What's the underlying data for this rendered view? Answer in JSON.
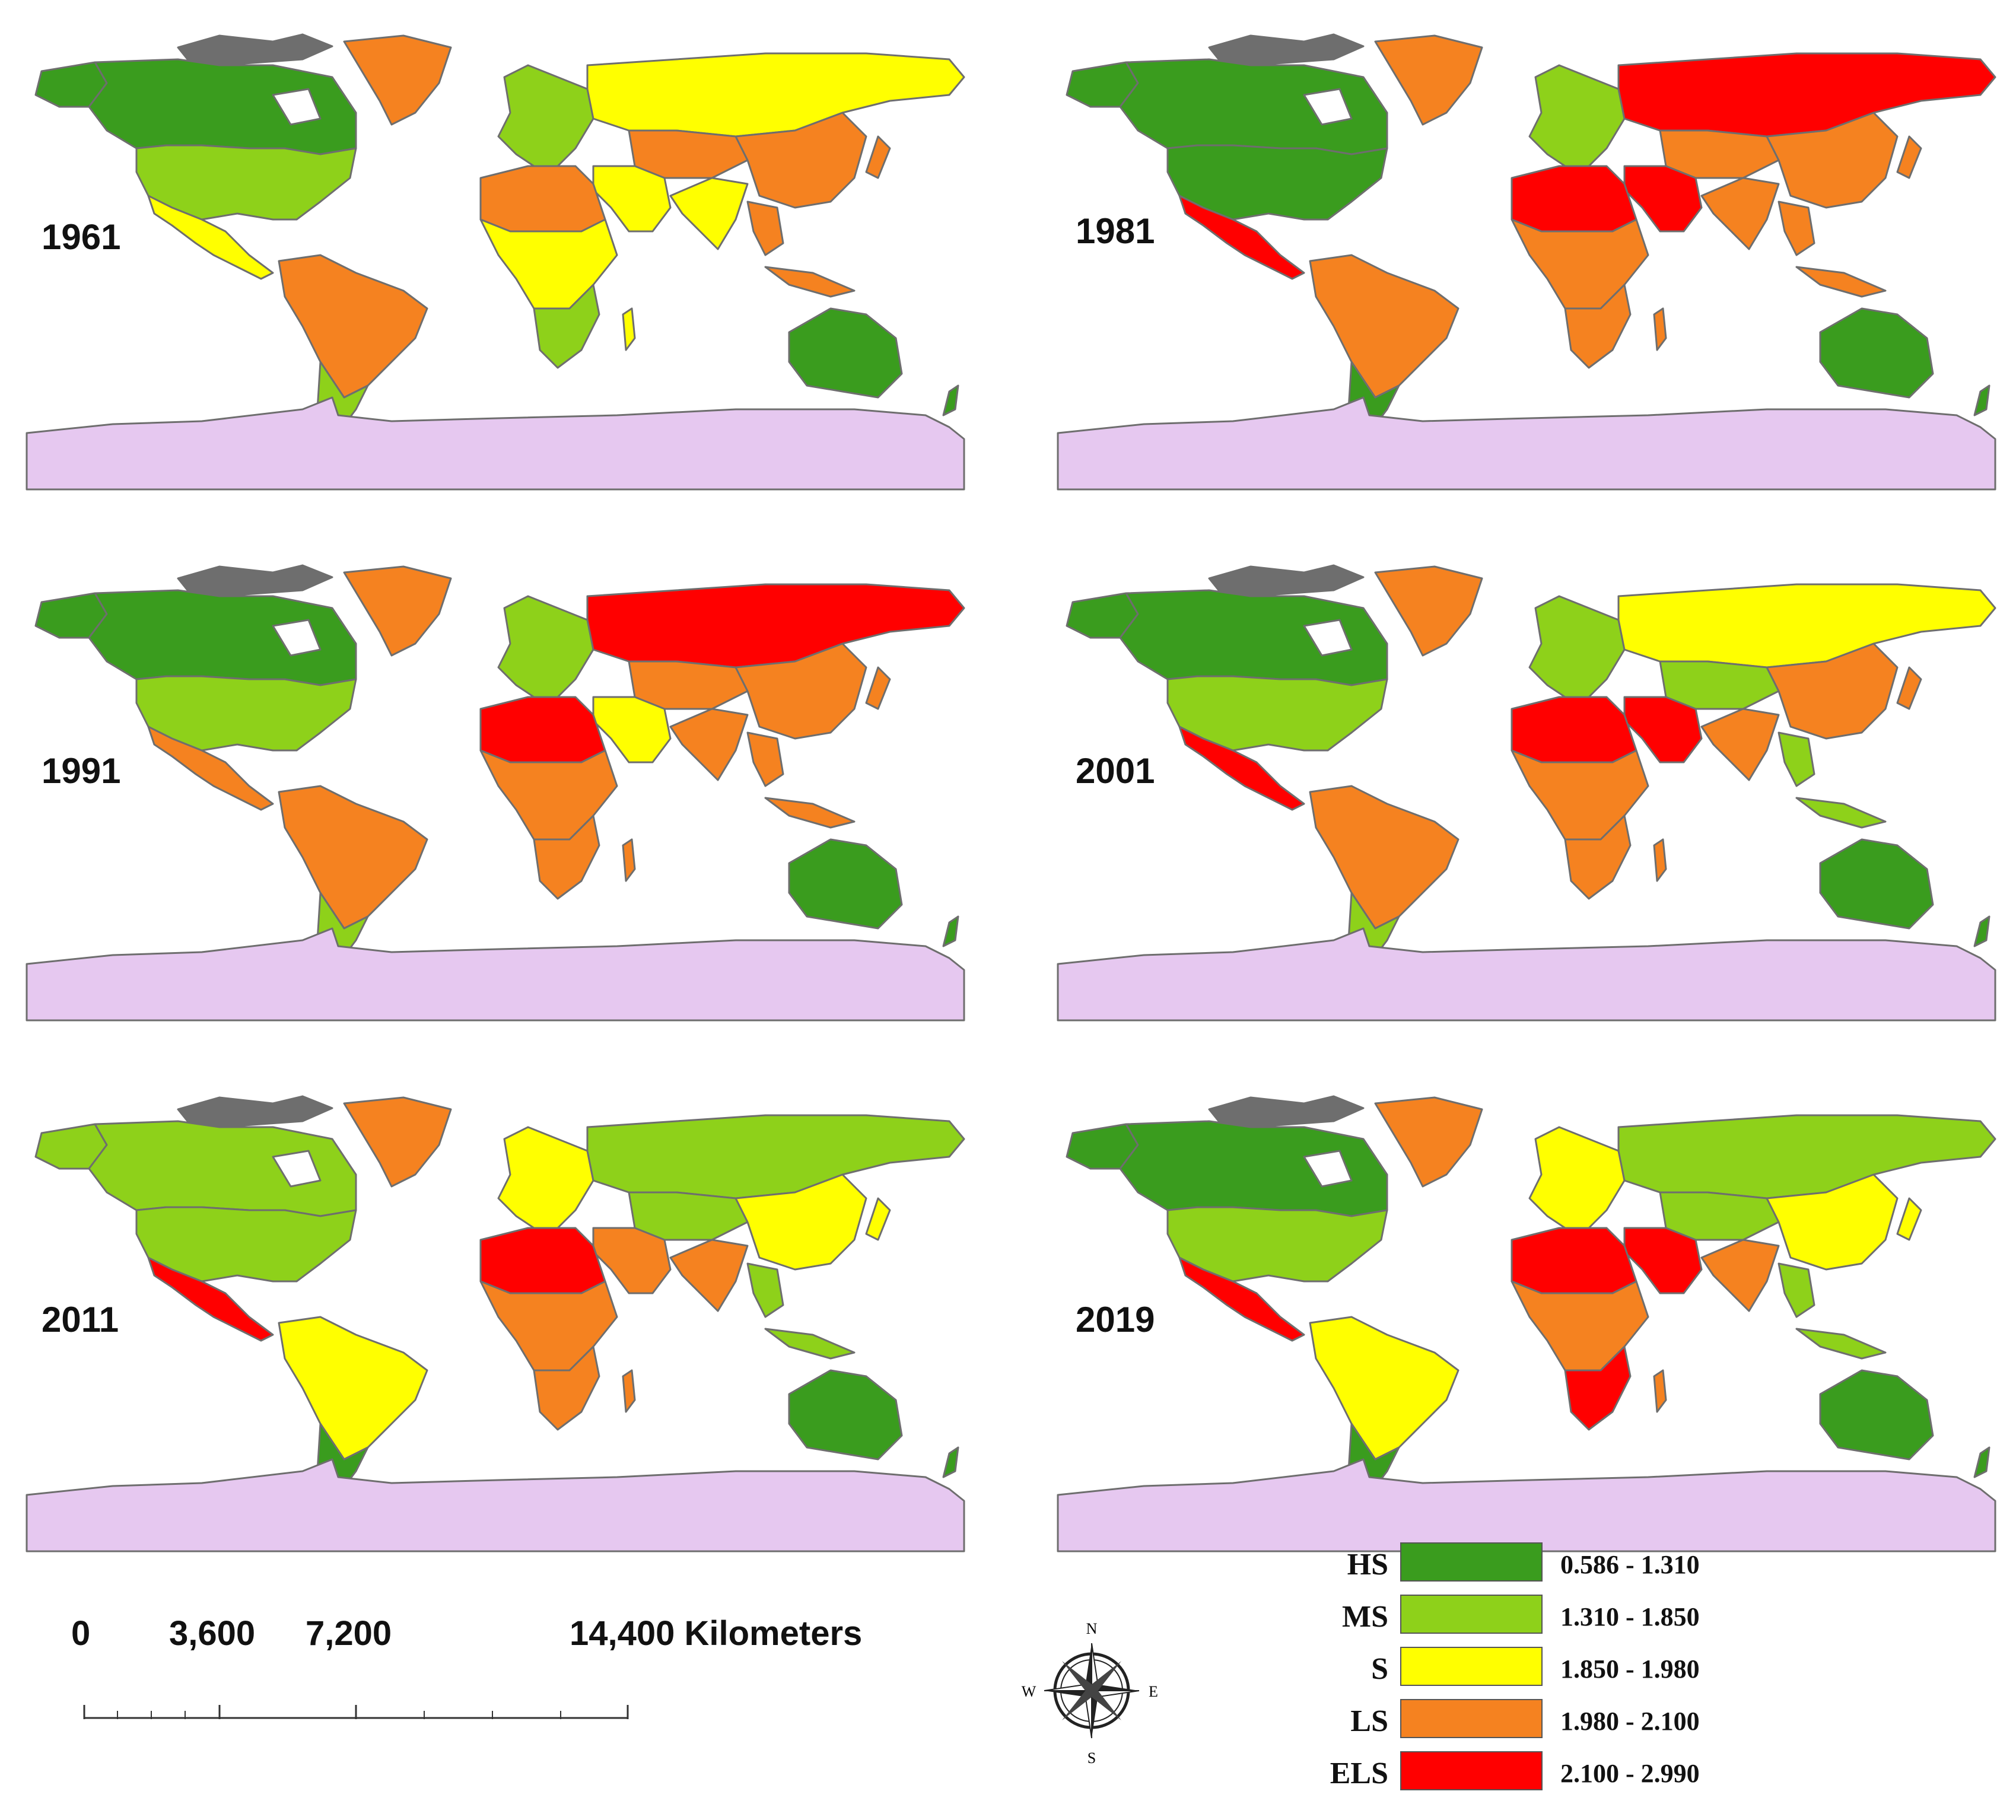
{
  "panels": [
    {
      "year": "1961",
      "colors": {
        "na": "#3a9c1e",
        "usa": "#8ed11a",
        "mex": "#ffff00",
        "sa": "#f58220",
        "sa_s": "#8ed11a",
        "eur": "#8ed11a",
        "rus": "#ffff00",
        "asia": "#f58220",
        "china": "#f58220",
        "mideast": "#ffff00",
        "nafr": "#f58220",
        "cafr": "#ffff00",
        "safr": "#8ed11a",
        "india": "#ffff00",
        "aus": "#3a9c1e",
        "grl": "#f58220"
      }
    },
    {
      "year": "1981",
      "colors": {
        "na": "#3a9c1e",
        "usa": "#3a9c1e",
        "mex": "#ff0000",
        "sa": "#f58220",
        "sa_s": "#3a9c1e",
        "eur": "#8ed11a",
        "rus": "#ff0000",
        "asia": "#f58220",
        "china": "#f58220",
        "mideast": "#ff0000",
        "nafr": "#ff0000",
        "cafr": "#f58220",
        "safr": "#f58220",
        "india": "#f58220",
        "aus": "#3a9c1e",
        "grl": "#f58220"
      }
    },
    {
      "year": "1991",
      "colors": {
        "na": "#3a9c1e",
        "usa": "#8ed11a",
        "mex": "#f58220",
        "sa": "#f58220",
        "sa_s": "#8ed11a",
        "eur": "#8ed11a",
        "rus": "#ff0000",
        "asia": "#f58220",
        "china": "#f58220",
        "mideast": "#ffff00",
        "nafr": "#ff0000",
        "cafr": "#f58220",
        "safr": "#f58220",
        "india": "#f58220",
        "aus": "#3a9c1e",
        "grl": "#f58220"
      }
    },
    {
      "year": "2001",
      "colors": {
        "na": "#3a9c1e",
        "usa": "#8ed11a",
        "mex": "#ff0000",
        "sa": "#f58220",
        "sa_s": "#8ed11a",
        "eur": "#8ed11a",
        "rus": "#ffff00",
        "asia": "#8ed11a",
        "china": "#f58220",
        "mideast": "#ff0000",
        "nafr": "#ff0000",
        "cafr": "#f58220",
        "safr": "#f58220",
        "india": "#f58220",
        "aus": "#3a9c1e",
        "grl": "#f58220"
      }
    },
    {
      "year": "2011",
      "colors": {
        "na": "#8ed11a",
        "usa": "#8ed11a",
        "mex": "#ff0000",
        "sa": "#ffff00",
        "sa_s": "#3a9c1e",
        "eur": "#ffff00",
        "rus": "#8ed11a",
        "asia": "#8ed11a",
        "china": "#ffff00",
        "mideast": "#f58220",
        "nafr": "#ff0000",
        "cafr": "#f58220",
        "safr": "#f58220",
        "india": "#f58220",
        "aus": "#3a9c1e",
        "grl": "#f58220"
      }
    },
    {
      "year": "2019",
      "colors": {
        "na": "#3a9c1e",
        "usa": "#8ed11a",
        "mex": "#ff0000",
        "sa": "#ffff00",
        "sa_s": "#3a9c1e",
        "eur": "#ffff00",
        "rus": "#8ed11a",
        "asia": "#8ed11a",
        "china": "#ffff00",
        "mideast": "#ff0000",
        "nafr": "#ff0000",
        "cafr": "#f58220",
        "safr": "#ff0000",
        "india": "#f58220",
        "aus": "#3a9c1e",
        "grl": "#f58220"
      }
    }
  ],
  "antarctica_color": "#e6c8f0",
  "border_color": "#6e6e6e",
  "scale": {
    "ticks": [
      "0",
      "3,600",
      "7,200",
      "14,400 Kilometers"
    ]
  },
  "compass": {
    "n": "N",
    "s": "S",
    "e": "E",
    "w": "W"
  },
  "legend": [
    {
      "abbr": "HS",
      "range": "0.586 - 1.310",
      "color": "#3a9c1e"
    },
    {
      "abbr": "MS",
      "range": "1.310 - 1.850",
      "color": "#8ed11a"
    },
    {
      "abbr": "S",
      "range": "1.850 - 1.980",
      "color": "#ffff00"
    },
    {
      "abbr": "LS",
      "range": "1.980 - 2.100",
      "color": "#f58220"
    },
    {
      "abbr": "ELS",
      "range": "2.100 - 2.990",
      "color": "#ff0000"
    }
  ]
}
